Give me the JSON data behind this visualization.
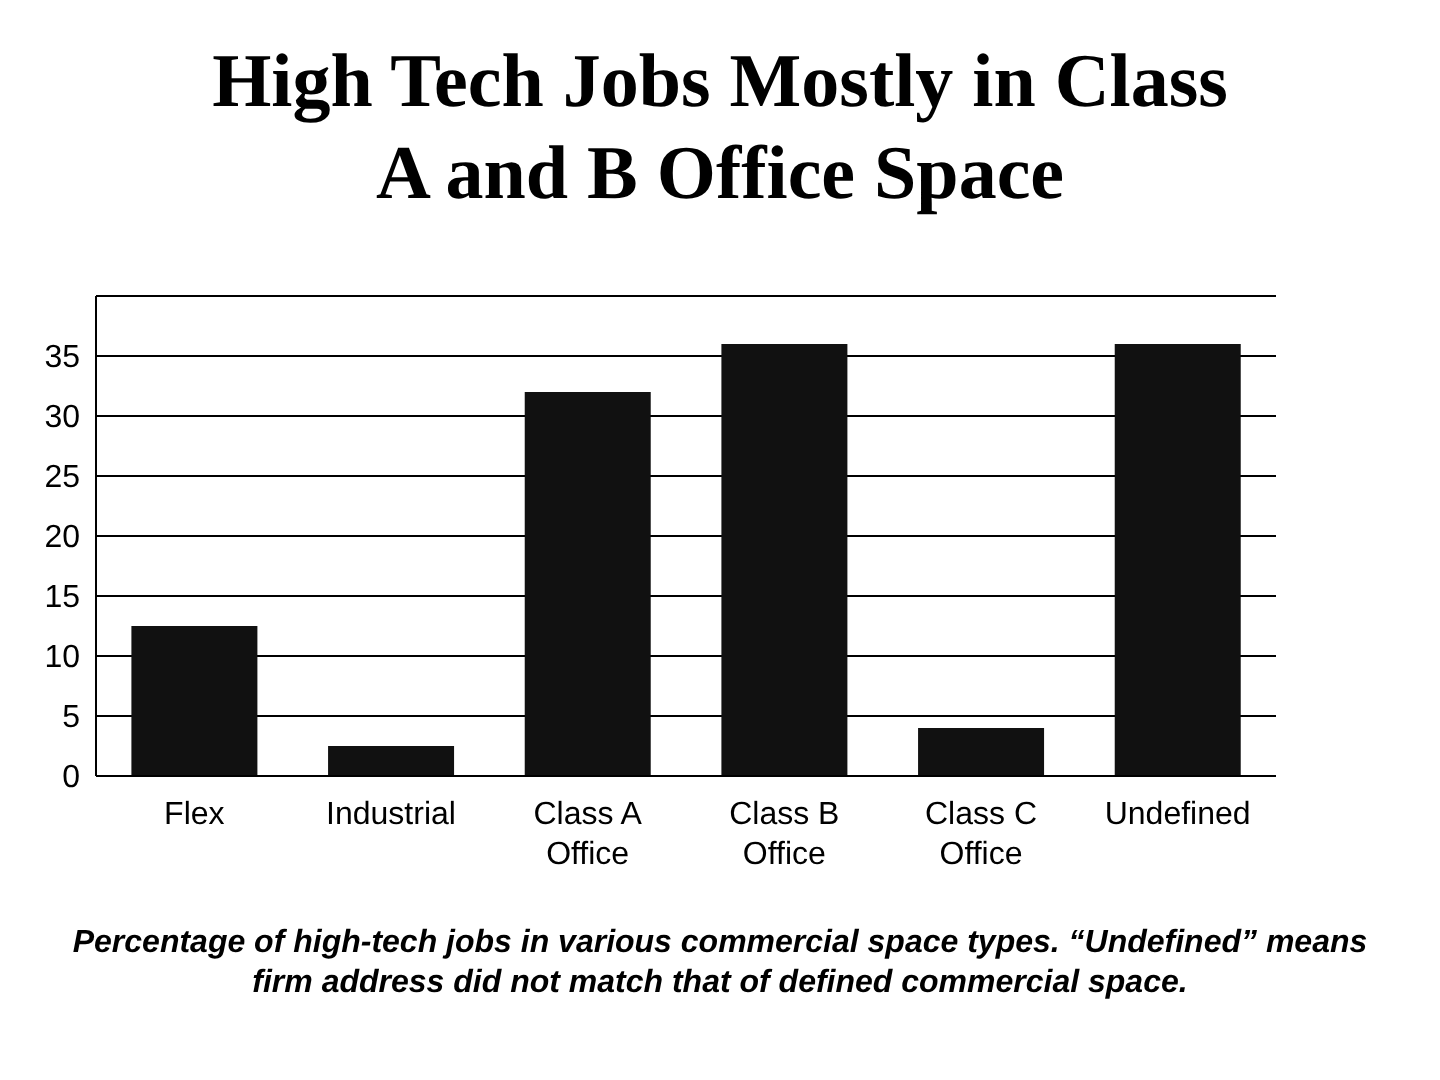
{
  "chart_data": {
    "type": "bar",
    "title": "High Tech Jobs Mostly in Class A and B Office Space",
    "categories": [
      "Flex",
      "Industrial",
      "Class A Office",
      "Class B Office",
      "Class C Office",
      "Undefined"
    ],
    "values": [
      12.5,
      2.5,
      32,
      36,
      4,
      36
    ],
    "color": "#111111",
    "ylim": [
      0,
      40
    ],
    "yticks": [
      0,
      5,
      10,
      15,
      20,
      25,
      30,
      35,
      {
        "value": 40,
        "label": null
      }
    ],
    "grid": "y",
    "annotations": [
      "Percentage of high-tech jobs in various commercial space types. “Undefined” means firm address did not match that of defined commercial space."
    ]
  }
}
